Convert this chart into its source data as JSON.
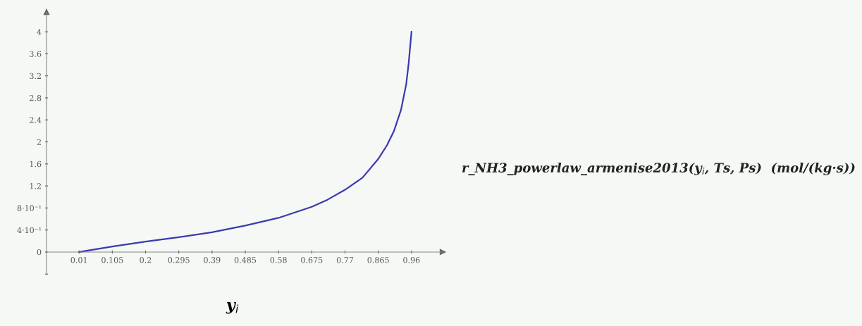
{
  "chart_data": {
    "type": "line",
    "xlabel": "y$_{i}$",
    "ylabel": "r_NH3_powerlaw_armenise2013(y$_{i}$, Ts, Ps)  (mol/(kg·s))",
    "x": [
      0.01,
      0.105,
      0.2,
      0.295,
      0.39,
      0.485,
      0.58,
      0.675,
      0.72,
      0.77,
      0.82,
      0.865,
      0.89,
      0.91,
      0.93,
      0.945,
      0.952,
      0.96
    ],
    "series": [
      {
        "color": "#3a3ab0",
        "values": [
          0,
          0.1,
          0.19,
          0.27,
          0.36,
          0.48,
          0.62,
          0.82,
          0.95,
          1.13,
          1.35,
          1.69,
          1.94,
          2.2,
          2.58,
          3.05,
          3.43,
          4.0
        ]
      }
    ],
    "xlim": [
      -0.083,
      1.049
    ],
    "ylim": [
      -0.41,
      4.36
    ],
    "xticks": [
      0.01,
      0.105,
      0.2,
      0.295,
      0.39,
      0.485,
      0.58,
      0.675,
      0.77,
      0.865,
      0.96
    ],
    "yticks": [
      {
        "value": -0.4,
        "label": null
      },
      0,
      {
        "value": 0.4,
        "label": "4·10⁻¹"
      },
      {
        "value": 0.8,
        "label": "8·10⁻¹"
      },
      1.2,
      1.6,
      2,
      2.4,
      2.8,
      3.2,
      3.6,
      4
    ],
    "grid": false,
    "legend": false,
    "marker": "none",
    "line_style": "solid"
  }
}
